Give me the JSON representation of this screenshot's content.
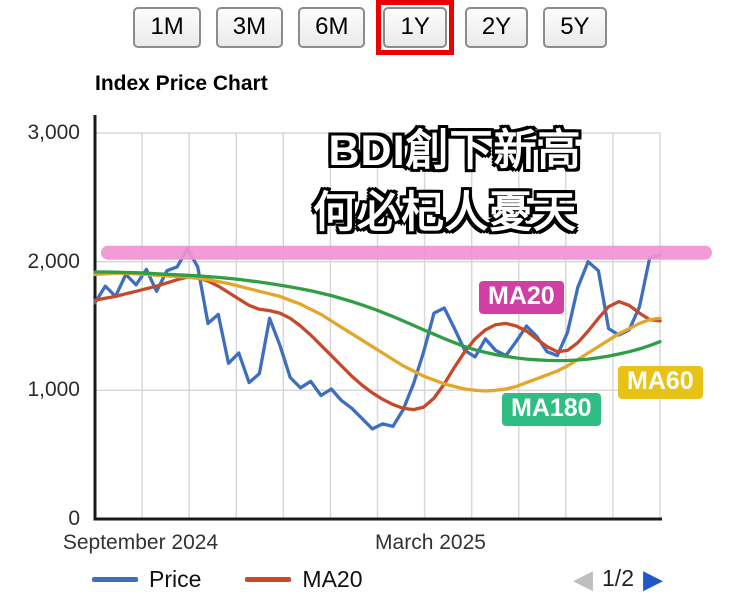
{
  "toolbar": {
    "buttons": [
      {
        "label": "1M",
        "selected": false
      },
      {
        "label": "3M",
        "selected": false
      },
      {
        "label": "6M",
        "selected": false
      },
      {
        "label": "1Y",
        "selected": true
      },
      {
        "label": "2Y",
        "selected": false
      },
      {
        "label": "5Y",
        "selected": false
      }
    ],
    "highlight_color": "#ec0000"
  },
  "chart": {
    "title": "Index Price Chart",
    "yticks": [
      "3,000",
      "2,000",
      "1,000",
      "0"
    ],
    "xticks": [
      "September 2024",
      "March 2025"
    ]
  },
  "chart_data": {
    "type": "line",
    "title": "Index Price Chart",
    "x_unit": "weekly points, 1Y range Sep 2024 - Sep 2025",
    "xtick_labels": [
      "September 2024",
      "March 2025"
    ],
    "ylim": [
      0,
      3000
    ],
    "yticks": [
      0,
      1000,
      2000,
      3000
    ],
    "grid": "on",
    "series": [
      {
        "name": "Price",
        "color": "#3e6fbe",
        "values": [
          1680,
          1810,
          1730,
          1900,
          1820,
          1940,
          1770,
          1930,
          1960,
          2100,
          1960,
          1520,
          1590,
          1210,
          1290,
          1060,
          1130,
          1560,
          1350,
          1100,
          1020,
          1070,
          960,
          1010,
          920,
          860,
          780,
          700,
          740,
          720,
          850,
          1050,
          1300,
          1600,
          1640,
          1480,
          1310,
          1260,
          1400,
          1310,
          1270,
          1380,
          1500,
          1420,
          1300,
          1270,
          1450,
          1800,
          2000,
          1930,
          1480,
          1430,
          1470,
          1650,
          2030,
          2050
        ]
      },
      {
        "name": "MA20",
        "color": "#c7492b",
        "values": [
          1700,
          1715,
          1730,
          1750,
          1770,
          1790,
          1810,
          1835,
          1860,
          1880,
          1875,
          1850,
          1810,
          1760,
          1710,
          1660,
          1630,
          1620,
          1600,
          1560,
          1500,
          1430,
          1350,
          1270,
          1190,
          1110,
          1040,
          980,
          930,
          890,
          860,
          850,
          870,
          940,
          1050,
          1180,
          1300,
          1400,
          1470,
          1510,
          1520,
          1500,
          1460,
          1400,
          1340,
          1300,
          1310,
          1370,
          1460,
          1560,
          1650,
          1690,
          1660,
          1600,
          1550,
          1540
        ]
      },
      {
        "name": "MA60",
        "color": "#e4a62a",
        "values": [
          1900,
          1905,
          1910,
          1910,
          1905,
          1900,
          1895,
          1890,
          1885,
          1880,
          1870,
          1860,
          1845,
          1830,
          1810,
          1790,
          1770,
          1750,
          1730,
          1700,
          1670,
          1630,
          1590,
          1540,
          1490,
          1440,
          1390,
          1340,
          1290,
          1240,
          1190,
          1150,
          1110,
          1080,
          1050,
          1030,
          1010,
          1000,
          995,
          1000,
          1010,
          1030,
          1060,
          1090,
          1120,
          1150,
          1190,
          1240,
          1290,
          1340,
          1390,
          1440,
          1480,
          1520,
          1550,
          1560
        ]
      },
      {
        "name": "MA180",
        "color": "#2f9e44",
        "values": [
          1920,
          1920,
          1918,
          1916,
          1914,
          1910,
          1906,
          1902,
          1898,
          1894,
          1890,
          1884,
          1878,
          1870,
          1862,
          1852,
          1842,
          1830,
          1818,
          1804,
          1790,
          1774,
          1756,
          1736,
          1714,
          1690,
          1664,
          1636,
          1606,
          1574,
          1540,
          1505,
          1470,
          1436,
          1402,
          1370,
          1340,
          1315,
          1295,
          1278,
          1264,
          1252,
          1243,
          1237,
          1233,
          1231,
          1232,
          1236,
          1243,
          1253,
          1266,
          1282,
          1300,
          1322,
          1348,
          1378
        ]
      }
    ],
    "highlight_band": {
      "value": 2070,
      "color": "#f092d4",
      "note": "pink horizontal highlight bar across chart near 2,070"
    }
  },
  "annotations": {
    "line1": "BDI創下新高",
    "line2": "何必杞人憂天",
    "ma20_label": "MA20",
    "ma60_label": "MA60",
    "ma180_label": "MA180",
    "ma20_label_bg": "#cf3fa4",
    "ma60_label_bg": "#e8c217",
    "ma180_label_bg": "#2fbd83"
  },
  "legend": {
    "items": [
      {
        "label": "Price",
        "color": "#3e6fbe"
      },
      {
        "label": "MA20",
        "color": "#c7492b"
      }
    ],
    "pagination": {
      "current": "1/2",
      "prev_icon": "◀",
      "next_icon": "▶",
      "prev_color": "#bfbfbf",
      "next_color": "#2158c8"
    }
  }
}
